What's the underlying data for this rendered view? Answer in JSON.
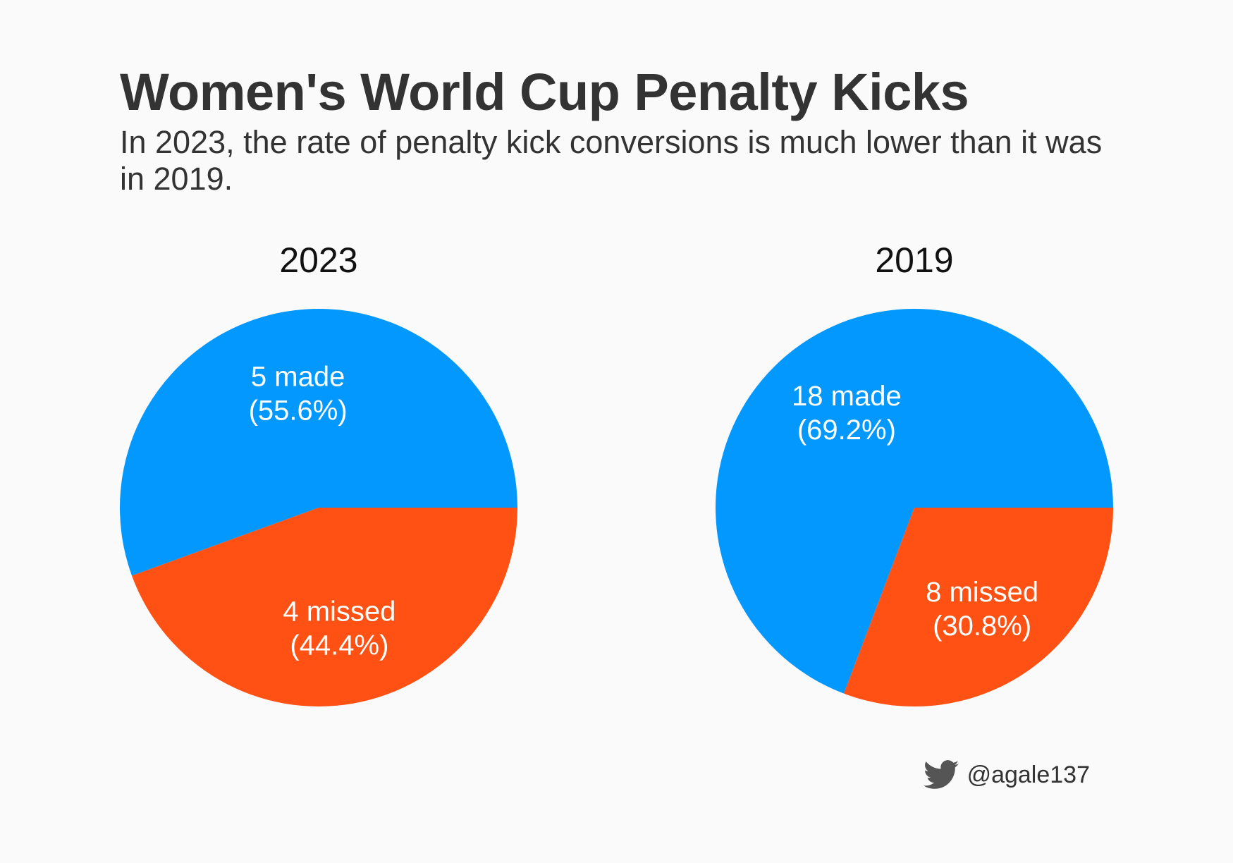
{
  "title": "Women's World Cup Penalty Kicks",
  "subtitle": "In 2023, the rate of penalty kick conversions is much lower than it was in 2019.",
  "colors": {
    "made": "#0398fd",
    "missed": "#fe5113",
    "text": "#333333",
    "background": "#fafafa"
  },
  "chart_data": [
    {
      "type": "pie",
      "title": "2023",
      "slices": [
        {
          "label": "made",
          "value": 5,
          "percent": 55.6,
          "line1": "5 made",
          "line2": "(55.6%)",
          "color": "#0398fd"
        },
        {
          "label": "missed",
          "value": 4,
          "percent": 44.4,
          "line1": "4 missed",
          "line2": "(44.4%)",
          "color": "#fe5113"
        }
      ]
    },
    {
      "type": "pie",
      "title": "2019",
      "slices": [
        {
          "label": "made",
          "value": 18,
          "percent": 69.2,
          "line1": "18 made",
          "line2": "(69.2%)",
          "color": "#0398fd"
        },
        {
          "label": "missed",
          "value": 8,
          "percent": 30.8,
          "line1": "8 missed",
          "line2": "(30.8%)",
          "color": "#fe5113"
        }
      ]
    }
  ],
  "footer": {
    "icon": "twitter-bird-icon",
    "handle": "@agale137"
  }
}
